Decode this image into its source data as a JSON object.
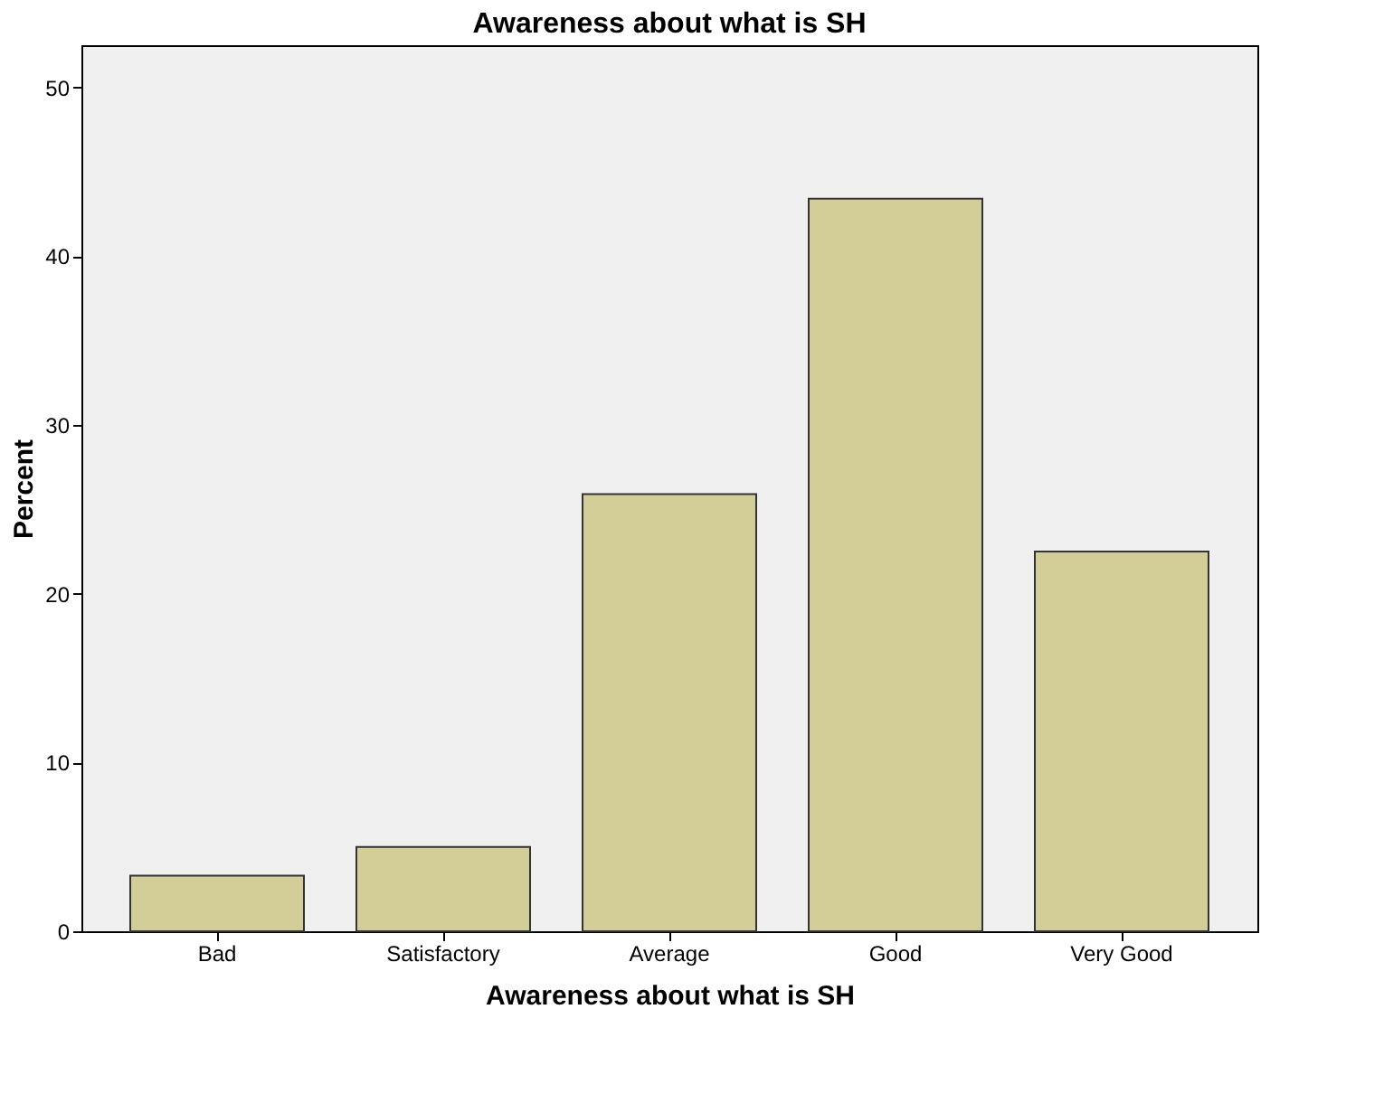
{
  "chart_data": {
    "type": "bar",
    "title": "Awareness about what is SH",
    "xlabel": "Awareness about what is SH",
    "ylabel": "Percent",
    "categories": [
      "Bad",
      "Satisfactory",
      "Average",
      "Good",
      "Very Good"
    ],
    "values": [
      3.3,
      5.0,
      25.9,
      43.4,
      22.5
    ],
    "color": "#d3cd98",
    "ylim": [
      0,
      52.5
    ],
    "yticks": [
      0,
      10,
      20,
      30,
      40,
      50
    ],
    "grid": false
  }
}
